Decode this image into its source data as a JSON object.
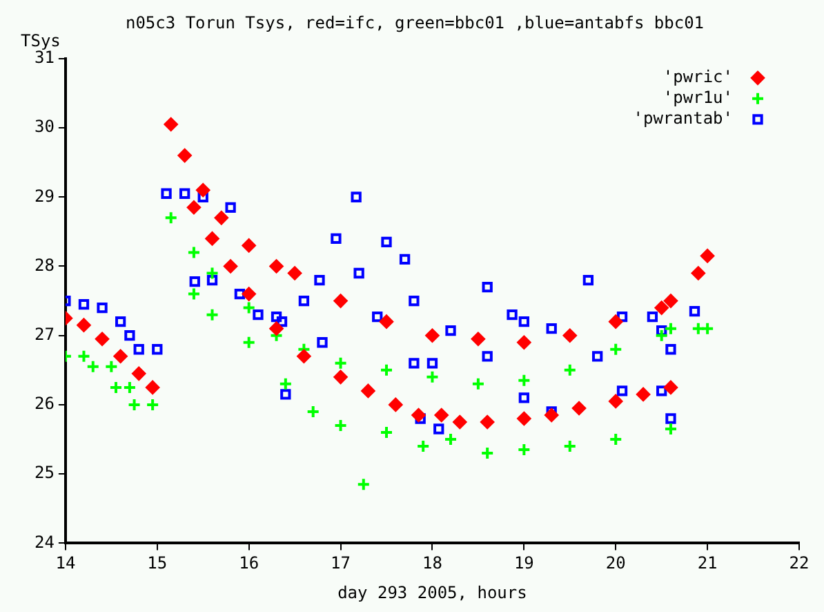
{
  "chart_data": {
    "type": "scatter",
    "title": "n05c3 Torun Tsys, red=ifc, green=bbc01 ,blue=antabfs bbc01",
    "xlabel": "day 293 2005, hours",
    "ylabel": "TSys",
    "xlim": [
      14,
      22
    ],
    "xticks": [
      14,
      15,
      16,
      17,
      18,
      19,
      20,
      21,
      22
    ],
    "ylim": [
      24,
      31
    ],
    "yticks": [
      24,
      25,
      26,
      27,
      28,
      29,
      30,
      31
    ],
    "grid": false,
    "legend": "top right",
    "series": [
      {
        "name": "'pwric'",
        "color": "#ff0000",
        "marker": "diamond",
        "x": [
          14,
          14.2,
          14.4,
          14.6,
          14.8,
          14.95,
          15.15,
          15.3,
          15.5,
          15.7,
          16,
          16.3,
          16.5,
          17,
          17.5,
          18,
          18.5,
          19,
          19.5,
          20,
          20.5,
          20.6,
          15.4,
          15.6,
          15.8,
          16,
          16.3,
          16.6,
          17,
          17.3,
          17.6,
          17.85,
          18.1,
          18.3,
          18.6,
          19,
          19.3,
          19.6,
          20,
          20.3,
          20.6,
          20.9,
          21
        ],
        "values": [
          27.25,
          27.15,
          26.95,
          26.7,
          26.45,
          26.25,
          30.05,
          29.6,
          29.1,
          28.7,
          28.3,
          28,
          27.9,
          27.5,
          27.2,
          27,
          26.95,
          26.9,
          27,
          27.2,
          27.4,
          27.5,
          28.85,
          28.4,
          28,
          27.6,
          27.1,
          26.7,
          26.4,
          26.2,
          26,
          25.85,
          25.85,
          25.75,
          25.75,
          25.8,
          25.85,
          25.95,
          26.05,
          26.15,
          26.25,
          27.9,
          28.15
        ]
      },
      {
        "name": "'pwr1u'",
        "color": "#00ff00",
        "marker": "cross",
        "x": [
          14,
          14.2,
          14.3,
          14.5,
          14.55,
          14.7,
          14.75,
          14.95,
          15.15,
          15.4,
          15.6,
          16,
          16.3,
          16.6,
          17,
          17.5,
          18,
          18.5,
          19,
          19.5,
          20,
          20.5,
          20.6,
          20.9,
          21,
          15.4,
          15.6,
          16,
          16.4,
          16.7,
          17,
          17.5,
          17.9,
          18.2,
          18.6,
          19,
          19.5,
          20,
          20.6,
          17.25
        ],
        "values": [
          26.7,
          26.7,
          26.55,
          26.55,
          26.25,
          26.25,
          26,
          26,
          28.7,
          28.2,
          27.9,
          27.4,
          27,
          26.8,
          26.6,
          26.5,
          26.4,
          26.3,
          26.35,
          26.5,
          26.8,
          27,
          27.1,
          27.1,
          27.1,
          27.6,
          27.3,
          26.9,
          26.3,
          25.9,
          25.7,
          25.6,
          25.4,
          25.5,
          25.3,
          25.35,
          25.4,
          25.5,
          25.65,
          24.85
        ]
      },
      {
        "name": "'pwrantab'",
        "color": "#0000ff",
        "marker": "square",
        "x": [
          14,
          14.2,
          14.4,
          14.6,
          14.7,
          14.8,
          15,
          15.1,
          15.3,
          15.5,
          15.8,
          15.41,
          15.6,
          15.9,
          16.1,
          16.36,
          16.4,
          16.8,
          17.2,
          17.5,
          17.7,
          17.8,
          17.87,
          16.77,
          16.95,
          17.17,
          16.3,
          16.6,
          17.4,
          17.8,
          18,
          18.2,
          18.6,
          18.87,
          19,
          19.3,
          19.7,
          20.07,
          20.4,
          20.5,
          20.6,
          18.07,
          18.6,
          19,
          19.3,
          19.8,
          20.07,
          20.5,
          20.6,
          20.86
        ],
        "values": [
          27.5,
          27.45,
          27.4,
          27.2,
          27,
          26.8,
          26.8,
          29.05,
          29.05,
          29,
          28.85,
          27.78,
          27.8,
          27.6,
          27.3,
          27.2,
          26.15,
          26.9,
          27.9,
          28.35,
          28.1,
          27.5,
          25.8,
          27.8,
          28.4,
          29,
          27.27,
          27.5,
          27.27,
          26.6,
          26.6,
          27.07,
          27.7,
          27.3,
          27.2,
          27.1,
          27.8,
          27.27,
          27.27,
          27.07,
          26.8,
          25.65,
          26.7,
          26.1,
          25.9,
          26.7,
          26.2,
          26.2,
          25.8,
          27.35
        ]
      }
    ]
  }
}
